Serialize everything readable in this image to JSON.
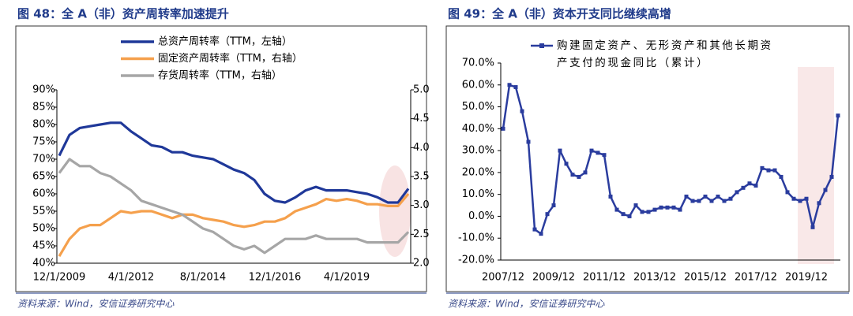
{
  "chart_data": [
    {
      "type": "line",
      "title": "图 48：全 A（非）资产周转率加速提升",
      "source": "资料来源：Wind，安信证券研究中心",
      "categories": [
        "12/1/2009",
        null,
        null,
        null,
        null,
        null,
        null,
        "4/1/2012",
        null,
        null,
        null,
        null,
        null,
        null,
        "8/1/2014",
        null,
        null,
        null,
        null,
        null,
        null,
        "12/1/2016",
        null,
        null,
        null,
        null,
        null,
        null,
        "4/1/2019",
        null,
        null,
        null,
        null,
        null,
        null
      ],
      "ylim": [
        40,
        90
      ],
      "yticks": [
        {
          "value": 40,
          "label": "40%"
        },
        {
          "value": 45,
          "label": "45%"
        },
        {
          "value": 50,
          "label": "50%"
        },
        {
          "value": 55,
          "label": "55%"
        },
        {
          "value": 60,
          "label": "60%"
        },
        {
          "value": 65,
          "label": "65%"
        },
        {
          "value": 70,
          "label": "70%"
        },
        {
          "value": 75,
          "label": "75%"
        },
        {
          "value": 80,
          "label": "80%"
        },
        {
          "value": 85,
          "label": "85%"
        },
        {
          "value": 90,
          "label": "90%"
        }
      ],
      "y2lim": [
        2,
        5
      ],
      "y2ticks": [
        {
          "value": 2,
          "label": "2.0"
        },
        {
          "value": 2.5,
          "label": "2.5"
        },
        {
          "value": 3,
          "label": "3.0"
        },
        {
          "value": 3.5,
          "label": "3.5"
        },
        {
          "value": 4,
          "label": "4.0"
        },
        {
          "value": 4.5,
          "label": "4.5"
        },
        {
          "value": 5,
          "label": "5.0"
        }
      ],
      "series": [
        {
          "name": "总资产周转率（TTM，左轴）",
          "color": "#1f3899",
          "values": [
            71,
            77,
            79,
            79.5,
            80,
            80.5,
            80.5,
            78,
            76,
            74,
            73.5,
            72,
            72,
            71,
            70.5,
            70,
            68.5,
            67,
            66,
            64,
            60,
            58,
            57.5,
            59,
            61,
            62,
            61,
            61,
            61,
            60.5,
            60,
            59,
            57.5,
            57.5,
            61.5
          ]
        },
        {
          "name": "固定资产周转率（TTM，右轴）",
          "color": "#f5a04c",
          "axis": "y2",
          "values": [
            2.12,
            2.42,
            2.6,
            2.66,
            2.66,
            2.78,
            2.9,
            2.87,
            2.9,
            2.9,
            2.84,
            2.78,
            2.84,
            2.84,
            2.78,
            2.75,
            2.72,
            2.66,
            2.63,
            2.66,
            2.72,
            2.72,
            2.78,
            2.9,
            2.96,
            3.02,
            3.11,
            3.08,
            3.11,
            3.08,
            3.02,
            3.02,
            2.99,
            2.99,
            3.2
          ]
        },
        {
          "name": "存货周转率（TTM，右轴）",
          "color": "#a6a6a6",
          "axis": "y2",
          "values": [
            3.56,
            3.8,
            3.68,
            3.68,
            3.56,
            3.5,
            3.38,
            3.26,
            3.08,
            3.02,
            2.96,
            2.9,
            2.84,
            2.72,
            2.6,
            2.54,
            2.42,
            2.3,
            2.24,
            2.3,
            2.18,
            2.3,
            2.42,
            2.42,
            2.42,
            2.48,
            2.42,
            2.42,
            2.42,
            2.42,
            2.36,
            2.36,
            2.36,
            2.36,
            2.54
          ]
        }
      ]
    },
    {
      "type": "line",
      "title": "图 49：全 A（非）资本开支同比继续高增",
      "source": "资料来源：Wind，安信证券研究中心",
      "categories": [
        "2007/12",
        null,
        null,
        null,
        null,
        null,
        null,
        null,
        "2009/12",
        null,
        null,
        null,
        null,
        null,
        null,
        null,
        "2011/12",
        null,
        null,
        null,
        null,
        null,
        null,
        null,
        "2013/12",
        null,
        null,
        null,
        null,
        null,
        null,
        null,
        "2015/12",
        null,
        null,
        null,
        null,
        null,
        null,
        null,
        "2017/12",
        null,
        null,
        null,
        null,
        null,
        null,
        null,
        "2019/12",
        null,
        null,
        null,
        null,
        null
      ],
      "ylim": [
        -20,
        70
      ],
      "yticks": [
        {
          "value": -20,
          "label": "-20.0%"
        },
        {
          "value": -10,
          "label": "-10.0%"
        },
        {
          "value": 0,
          "label": "0.0%"
        },
        {
          "value": 10,
          "label": "10.0%"
        },
        {
          "value": 20,
          "label": "20.0%"
        },
        {
          "value": 30,
          "label": "30.0%"
        },
        {
          "value": 40,
          "label": "40.0%"
        },
        {
          "value": 50,
          "label": "50.0%"
        },
        {
          "value": 60,
          "label": "60.0%"
        },
        {
          "value": 70,
          "label": "70.0%"
        }
      ],
      "series": [
        {
          "name": "购建固定资产、无形资产和其他长期资产支付的现金同比（累计）",
          "color": "#2a3c9e",
          "values": [
            40,
            60,
            59,
            48,
            34,
            -6,
            -8,
            1,
            5,
            30,
            24,
            19,
            18,
            20,
            30,
            29,
            28,
            9,
            3,
            1,
            0,
            5,
            2,
            2,
            3,
            4,
            4,
            4,
            3,
            9,
            7,
            7,
            9,
            7,
            9,
            7,
            8,
            11,
            13,
            15,
            14,
            22,
            21,
            21,
            18,
            11,
            8,
            7,
            8,
            -5,
            6,
            12,
            18,
            46
          ]
        }
      ]
    }
  ]
}
